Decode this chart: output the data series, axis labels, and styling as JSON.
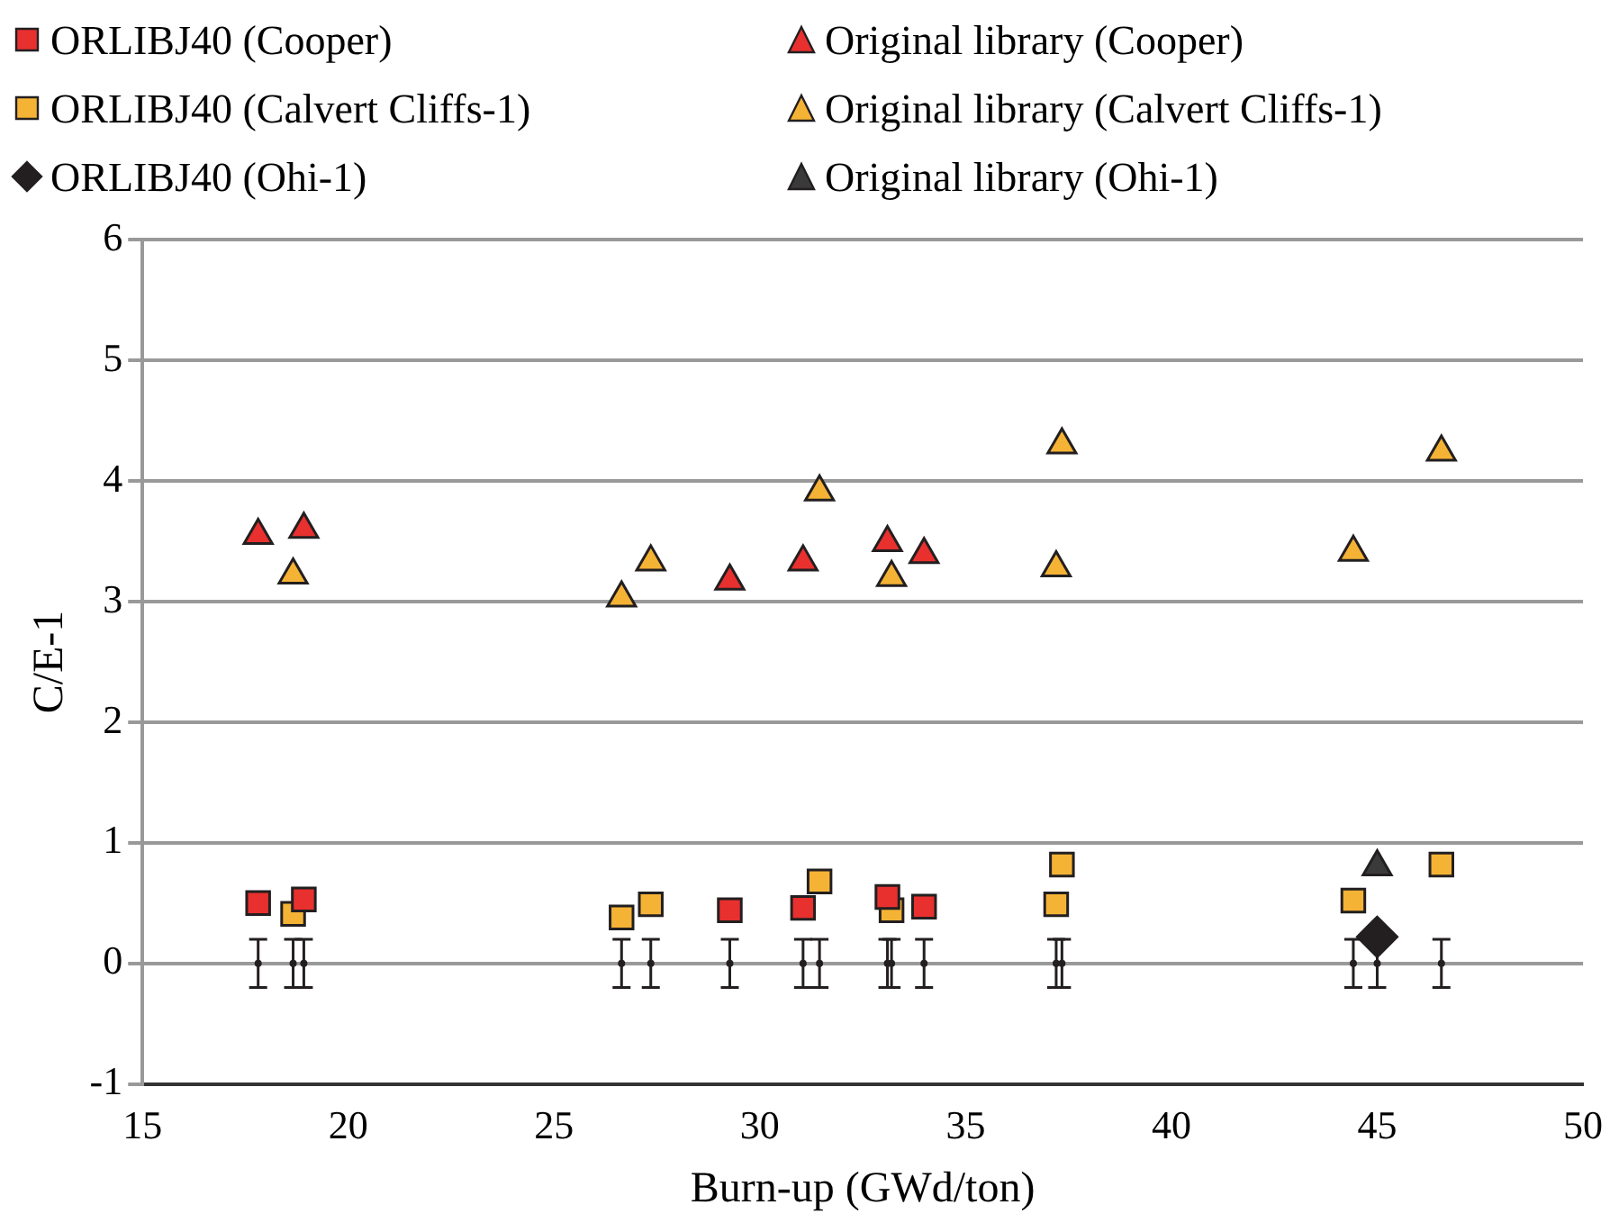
{
  "chart_data": {
    "type": "scatter",
    "xlabel": "Burn-up (GWd/ton)",
    "ylabel": "C/E-1",
    "xlim": [
      15,
      50
    ],
    "xticks": [
      15,
      20,
      25,
      30,
      35,
      40,
      45,
      50
    ],
    "ylim": [
      -1,
      6
    ],
    "yticks": [
      -1,
      0,
      1,
      2,
      3,
      4,
      5,
      6
    ],
    "grid": "y",
    "legend": "top",
    "series": [
      {
        "name": "ORLIBJ40 (Cooper)",
        "color": "#e8302f",
        "marker": "square",
        "x": [
          17.81,
          18.92,
          29.27,
          31.05,
          33.1,
          33.99
        ],
        "values": [
          0.5,
          0.53,
          0.44,
          0.46,
          0.55,
          0.47
        ]
      },
      {
        "name": "Original library (Cooper)",
        "color": "#e8302f",
        "marker": "triangle",
        "x": [
          17.81,
          18.92,
          29.27,
          31.05,
          33.1,
          33.99
        ],
        "values": [
          3.55,
          3.6,
          3.17,
          3.33,
          3.49,
          3.39
        ]
      },
      {
        "name": "ORLIBJ40 (Calvert Cliffs-1)",
        "color": "#f5b335",
        "marker": "square",
        "x": [
          18.66,
          26.64,
          27.35,
          31.45,
          33.2,
          37.2,
          37.34,
          44.42,
          46.56
        ],
        "values": [
          0.41,
          0.38,
          0.49,
          0.68,
          0.44,
          0.49,
          0.82,
          0.52,
          0.82
        ]
      },
      {
        "name": "Original library (Calvert Cliffs-1)",
        "color": "#f5b335",
        "marker": "triangle",
        "x": [
          18.66,
          26.64,
          27.35,
          31.45,
          33.2,
          37.2,
          37.34,
          44.42,
          46.56
        ],
        "values": [
          3.22,
          3.03,
          3.33,
          3.91,
          3.2,
          3.28,
          4.3,
          3.41,
          4.24
        ]
      },
      {
        "name": "ORLIBJ40 (Ohi-1)",
        "color": "#231f20",
        "marker": "diamond",
        "x": [
          45.0
        ],
        "values": [
          0.22
        ]
      },
      {
        "name": "Original library (Ohi-1)",
        "color": "#3a3a3a",
        "marker": "triangle",
        "x": [
          45.0
        ],
        "values": [
          0.8
        ]
      },
      {
        "color": "#231f20",
        "marker": "circle",
        "x": [
          17.81,
          18.66,
          18.92,
          26.64,
          27.35,
          29.27,
          31.05,
          31.45,
          33.1,
          33.2,
          33.99,
          37.2,
          37.34,
          44.42,
          45.0,
          46.56
        ],
        "values": [
          0,
          0,
          0,
          0,
          0,
          0,
          0,
          0,
          0,
          0,
          0,
          0,
          0,
          0,
          0,
          0
        ],
        "errors": [
          0.2,
          0.2,
          0.2,
          0.2,
          0.2,
          0.2,
          0.2,
          0.2,
          0.2,
          0.2,
          0.2,
          0.2,
          0.2,
          0.2,
          0.2,
          0.2
        ]
      }
    ]
  }
}
